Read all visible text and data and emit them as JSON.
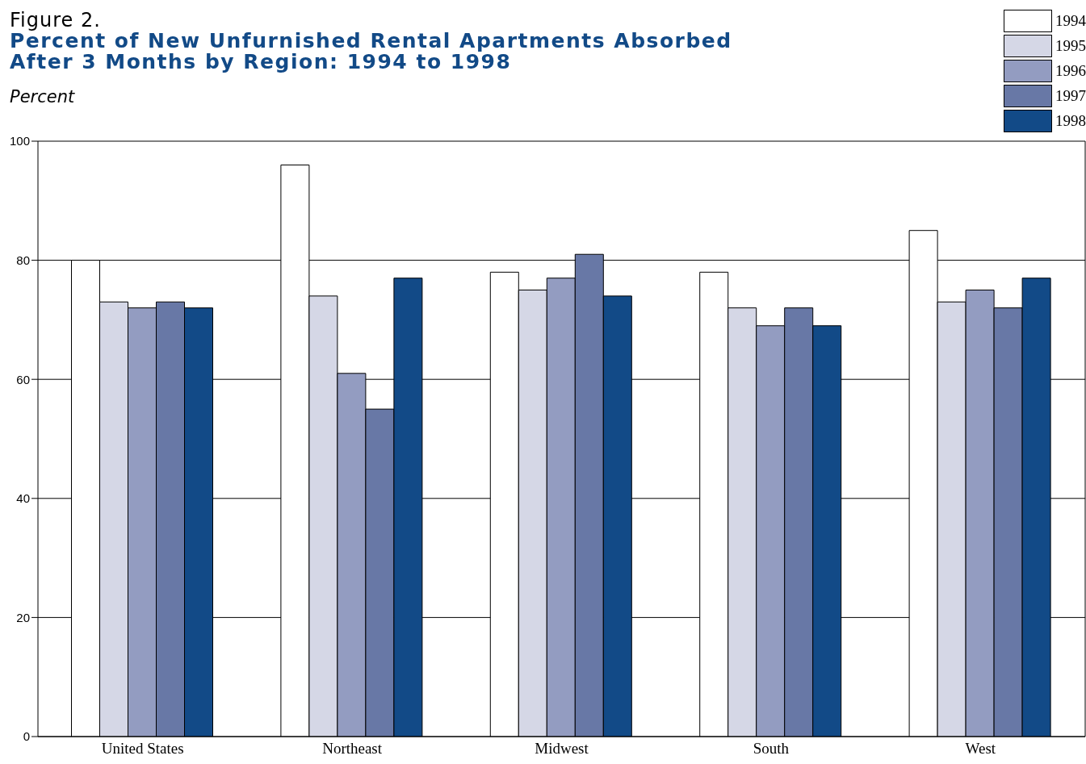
{
  "chart_data": {
    "type": "bar",
    "title": "Percent of New Unfurnished Rental Apartments Absorbed\nAfter 3 Months by Region:  1994 to 1998",
    "annotations": [
      "Figure 2."
    ],
    "ylabel": "Percent",
    "categories": [
      "United States",
      "Northeast",
      "Midwest",
      "South",
      "West"
    ],
    "series": [
      {
        "name": "1994",
        "color": "#ffffff",
        "values": [
          80,
          96,
          78,
          78,
          85
        ]
      },
      {
        "name": "1995",
        "color": "#d5d7e6",
        "values": [
          73,
          74,
          75,
          72,
          73
        ]
      },
      {
        "name": "1996",
        "color": "#939cc1",
        "values": [
          72,
          61,
          77,
          69,
          75
        ]
      },
      {
        "name": "1997",
        "color": "#6878a6",
        "values": [
          73,
          55,
          81,
          72,
          72
        ]
      },
      {
        "name": "1998",
        "color": "#124a87",
        "values": [
          72,
          77,
          74,
          69,
          77
        ]
      }
    ],
    "ylim": [
      0,
      100
    ],
    "yticks": [
      0,
      20,
      40,
      60,
      80,
      100
    ],
    "grid": "y",
    "legend": "top right"
  }
}
